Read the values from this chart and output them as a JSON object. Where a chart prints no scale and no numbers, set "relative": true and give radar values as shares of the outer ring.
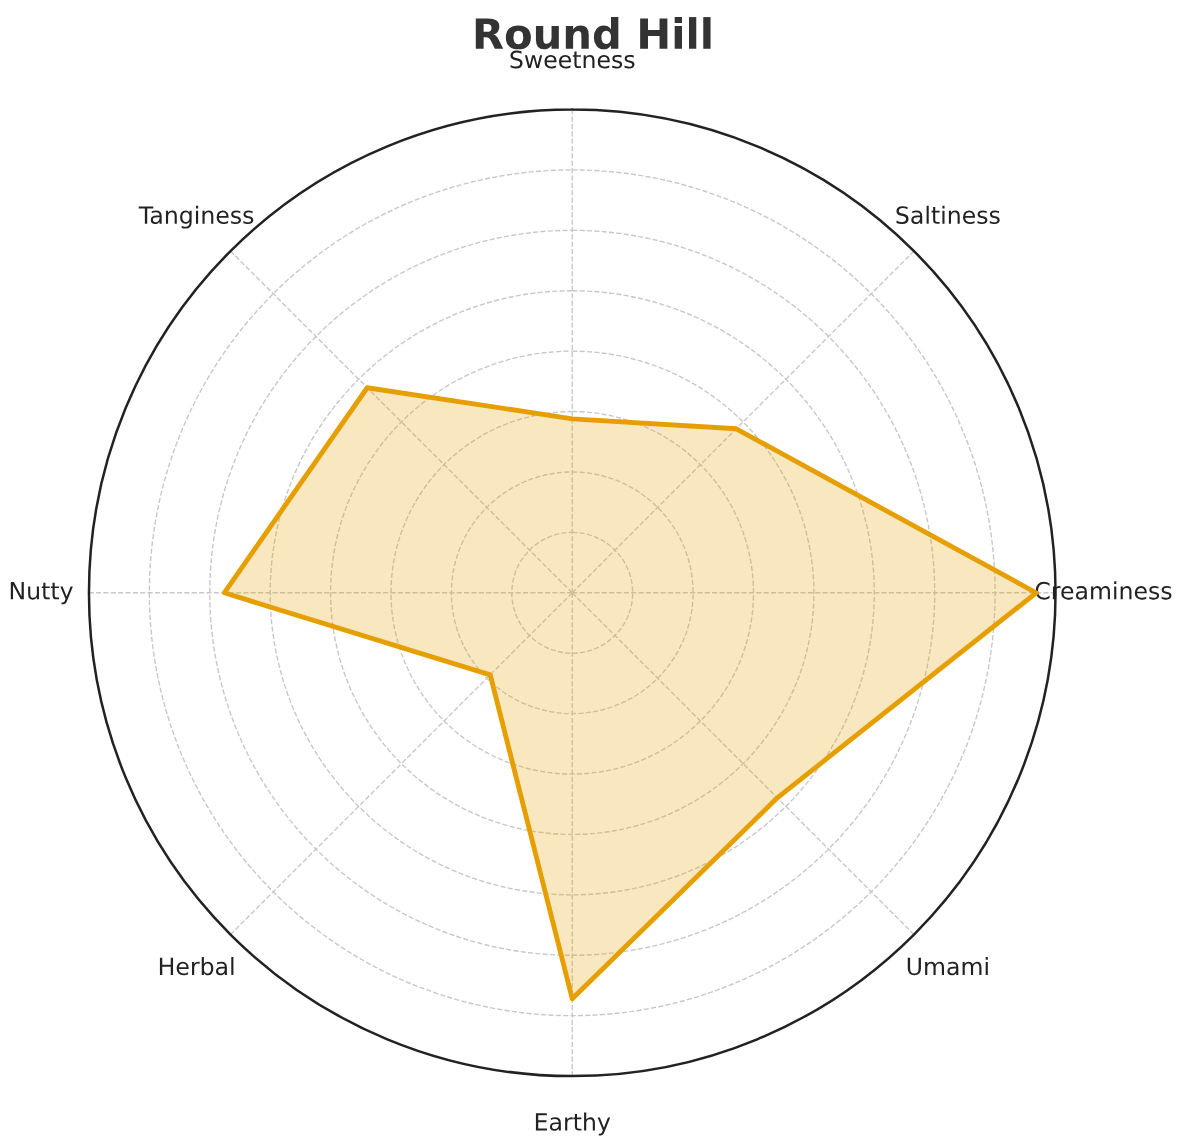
{
  "chart_data": {
    "type": "radar",
    "title": "Round Hill",
    "relative": true,
    "grid": true,
    "categories": [
      "Sweetness",
      "Saltiness",
      "Creaminess",
      "Umami",
      "Earthy",
      "Herbal",
      "Nutty",
      "Tanginess"
    ],
    "series": [
      {
        "color": "#e69f00",
        "values": [
          0.36,
          0.48,
          0.96,
          0.6,
          0.84,
          0.24,
          0.72,
          0.6
        ]
      }
    ]
  }
}
